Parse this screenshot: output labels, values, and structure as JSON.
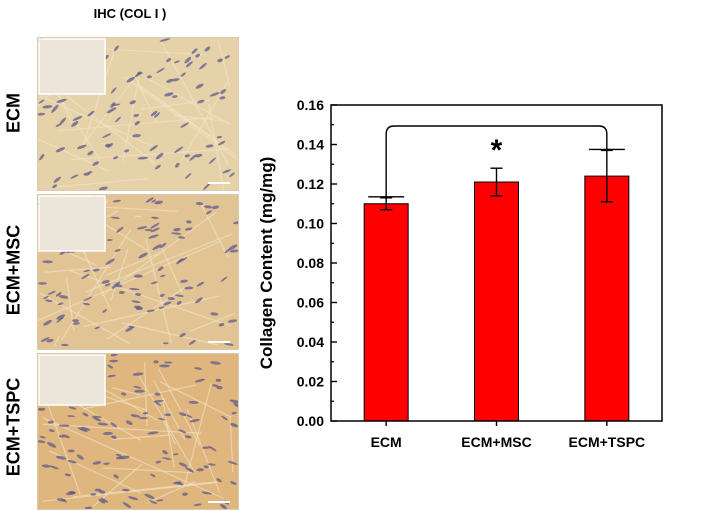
{
  "panel_title": "IHC (COL I )",
  "row_labels": [
    "ECM",
    "ECM+MSC",
    "ECM+TSPC"
  ],
  "micrograph_colors": {
    "ECM": "#e6d2a9",
    "ECM+MSC": "#e2c494",
    "ECM+TSPC": "#dfb67e",
    "nuclei": "#5f5a8c",
    "inset": "#ece5d9"
  },
  "chart_data": {
    "type": "bar",
    "categories": [
      "ECM",
      "ECM+MSC",
      "ECM+TSPC"
    ],
    "values": [
      0.11,
      0.121,
      0.124
    ],
    "errors": [
      0.003,
      0.007,
      0.013
    ],
    "ylabel": "Collagen Content (mg/mg)",
    "ylim": [
      0,
      0.16
    ],
    "yticks": [
      "0.00",
      "0.02",
      "0.04",
      "0.06",
      "0.08",
      "0.10",
      "0.12",
      "0.14",
      "0.16"
    ],
    "bar_color": "#ff0000",
    "significance": {
      "from": "ECM",
      "to": "ECM+TSPC",
      "label": "*"
    }
  }
}
